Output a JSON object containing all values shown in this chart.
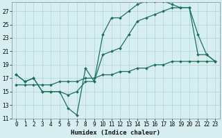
{
  "xlabel": "Humidex (Indice chaleur)",
  "bg_color": "#d6eef0",
  "grid_color": "#b0d0d8",
  "line_color": "#1a7060",
  "line1_x": [
    0,
    1,
    2,
    3,
    4,
    5,
    6,
    7,
    8,
    9,
    10,
    11,
    12,
    13,
    14,
    15,
    16,
    17,
    18,
    19,
    20,
    21,
    22,
    23
  ],
  "line1_y": [
    17.5,
    16.5,
    17,
    15,
    15,
    15,
    12.5,
    11.5,
    18.5,
    16.5,
    23.5,
    26,
    26,
    27,
    28,
    28.5,
    28.5,
    28.5,
    28,
    27.5,
    27.5,
    23.5,
    20.5,
    19.5
  ],
  "line2_x": [
    0,
    1,
    2,
    3,
    4,
    5,
    6,
    7,
    8,
    9,
    10,
    11,
    12,
    13,
    14,
    15,
    16,
    17,
    18,
    19,
    20,
    21,
    22,
    23
  ],
  "line2_y": [
    17.5,
    16.5,
    17,
    15,
    15,
    15,
    14.5,
    15,
    16.5,
    16.5,
    20.5,
    21,
    21.5,
    23.5,
    25.5,
    26,
    26.5,
    27,
    27.5,
    27.5,
    27.5,
    20.5,
    20.5,
    19.5
  ],
  "line3_x": [
    0,
    1,
    2,
    3,
    4,
    5,
    6,
    7,
    8,
    9,
    10,
    11,
    12,
    13,
    14,
    15,
    16,
    17,
    18,
    19,
    20,
    21,
    22,
    23
  ],
  "line3_y": [
    16,
    16,
    16,
    16,
    16,
    16.5,
    16.5,
    16.5,
    17,
    17,
    17.5,
    17.5,
    18,
    18,
    18.5,
    18.5,
    19,
    19,
    19.5,
    19.5,
    19.5,
    19.5,
    19.5,
    19.5
  ],
  "ylim": [
    11,
    28
  ],
  "xlim": [
    -0.5,
    23.5
  ],
  "yticks": [
    11,
    13,
    15,
    17,
    19,
    21,
    23,
    25,
    27
  ],
  "xticks": [
    0,
    1,
    2,
    3,
    4,
    5,
    6,
    7,
    8,
    9,
    10,
    11,
    12,
    13,
    14,
    15,
    16,
    17,
    18,
    19,
    20,
    21,
    22,
    23
  ],
  "markersize": 2.0,
  "linewidth": 0.9,
  "tick_fontsize": 5.5,
  "xlabel_fontsize": 6.5
}
